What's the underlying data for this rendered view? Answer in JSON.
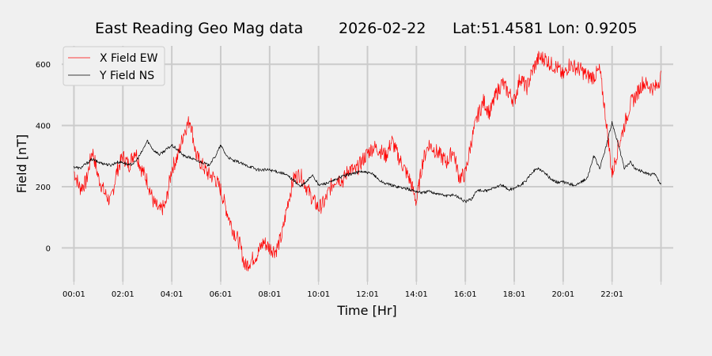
{
  "chart_data": {
    "type": "line",
    "title": {
      "name": "East Reading Geo Mag data",
      "date": "2026-02-22",
      "coords": "Lat:51.4581  Lon: 0.9205"
    },
    "xlabel": "Time  [Hr]",
    "ylabel": "Field  [nT]",
    "xlim": [
      -0.5,
      24.5
    ],
    "ylim": [
      -110,
      660
    ],
    "yticks": [
      0,
      200,
      400,
      600
    ],
    "ytick_labels": [
      "0",
      "200",
      "400",
      "600"
    ],
    "xticks": [
      0,
      2,
      4,
      6,
      8,
      10,
      12,
      14,
      16,
      18,
      20,
      22,
      24
    ],
    "xtick_labels": [
      "00:01",
      "02:01",
      "04:01",
      "06:01",
      "08:01",
      "10:01",
      "12:01",
      "14:01",
      "16:01",
      "18:01",
      "20:01",
      "22:01",
      ""
    ],
    "grid": true,
    "legend_position": "top-left",
    "x_unit": "hours since 00:01",
    "series": [
      {
        "name": "X Field EW",
        "color": "#ff0000",
        "x": [
          0,
          0.25,
          0.5,
          0.75,
          1.0,
          1.25,
          1.5,
          1.75,
          2.0,
          2.25,
          2.5,
          2.75,
          3.0,
          3.25,
          3.5,
          3.75,
          4.0,
          4.25,
          4.5,
          4.75,
          5.0,
          5.25,
          5.5,
          5.75,
          6.0,
          6.25,
          6.5,
          6.75,
          7.0,
          7.25,
          7.5,
          7.75,
          8.0,
          8.25,
          8.5,
          8.75,
          9.0,
          9.25,
          9.5,
          9.75,
          10.0,
          10.25,
          10.5,
          10.75,
          11.0,
          11.25,
          11.5,
          11.75,
          12.0,
          12.25,
          12.5,
          12.75,
          13.0,
          13.25,
          13.5,
          13.75,
          14.0,
          14.25,
          14.5,
          14.75,
          15.0,
          15.25,
          15.5,
          15.75,
          16.0,
          16.25,
          16.5,
          16.75,
          17.0,
          17.25,
          17.5,
          17.75,
          18.0,
          18.25,
          18.5,
          18.75,
          19.0,
          19.25,
          19.5,
          19.75,
          20.0,
          20.25,
          20.5,
          20.75,
          21.0,
          21.25,
          21.5,
          21.75,
          22.0,
          22.25,
          22.5,
          22.75,
          23.0,
          23.25,
          23.5,
          23.75,
          24.0
        ],
        "values": [
          250,
          195,
          215,
          320,
          230,
          180,
          150,
          250,
          300,
          270,
          320,
          260,
          220,
          150,
          120,
          140,
          260,
          300,
          380,
          420,
          300,
          270,
          240,
          230,
          190,
          120,
          60,
          20,
          -60,
          -40,
          -20,
          20,
          0,
          -10,
          40,
          150,
          230,
          240,
          200,
          160,
          130,
          150,
          200,
          230,
          220,
          260,
          250,
          280,
          310,
          330,
          320,
          300,
          350,
          300,
          260,
          220,
          150,
          280,
          340,
          320,
          300,
          280,
          320,
          230,
          240,
          350,
          430,
          480,
          440,
          500,
          540,
          510,
          480,
          560,
          520,
          580,
          620,
          620,
          600,
          590,
          560,
          600,
          590,
          580,
          560,
          560,
          580,
          420,
          240,
          330,
          400,
          470,
          500,
          540,
          530,
          520,
          560
        ]
      },
      {
        "name": "Y Field NS",
        "color": "#000000",
        "x": [
          0,
          0.25,
          0.5,
          0.75,
          1.0,
          1.25,
          1.5,
          1.75,
          2.0,
          2.25,
          2.5,
          2.75,
          3.0,
          3.25,
          3.5,
          3.75,
          4.0,
          4.25,
          4.5,
          4.75,
          5.0,
          5.25,
          5.5,
          5.75,
          6.0,
          6.25,
          6.5,
          6.75,
          7.0,
          7.25,
          7.5,
          7.75,
          8.0,
          8.25,
          8.5,
          8.75,
          9.0,
          9.25,
          9.5,
          9.75,
          10.0,
          10.25,
          10.5,
          10.75,
          11.0,
          11.25,
          11.5,
          11.75,
          12.0,
          12.25,
          12.5,
          12.75,
          13.0,
          13.25,
          13.5,
          13.75,
          14.0,
          14.25,
          14.5,
          14.75,
          15.0,
          15.25,
          15.5,
          15.75,
          16.0,
          16.25,
          16.5,
          16.75,
          17.0,
          17.25,
          17.5,
          17.75,
          18.0,
          18.25,
          18.5,
          18.75,
          19.0,
          19.25,
          19.5,
          19.75,
          20.0,
          20.25,
          20.5,
          20.75,
          21.0,
          21.25,
          21.5,
          21.75,
          22.0,
          22.25,
          22.5,
          22.75,
          23.0,
          23.25,
          23.5,
          23.75,
          24.0
        ],
        "values": [
          265,
          260,
          275,
          290,
          280,
          275,
          270,
          280,
          280,
          270,
          280,
          310,
          350,
          320,
          305,
          320,
          335,
          320,
          300,
          295,
          285,
          280,
          270,
          295,
          335,
          300,
          285,
          280,
          270,
          265,
          255,
          255,
          255,
          250,
          245,
          235,
          220,
          200,
          215,
          240,
          205,
          210,
          215,
          225,
          235,
          240,
          245,
          250,
          245,
          240,
          220,
          210,
          205,
          200,
          195,
          190,
          185,
          180,
          185,
          180,
          175,
          170,
          175,
          165,
          150,
          160,
          190,
          185,
          190,
          200,
          205,
          190,
          195,
          205,
          220,
          250,
          260,
          245,
          225,
          215,
          215,
          210,
          205,
          215,
          230,
          300,
          260,
          330,
          410,
          340,
          260,
          280,
          255,
          250,
          240,
          240,
          205
        ]
      }
    ]
  }
}
